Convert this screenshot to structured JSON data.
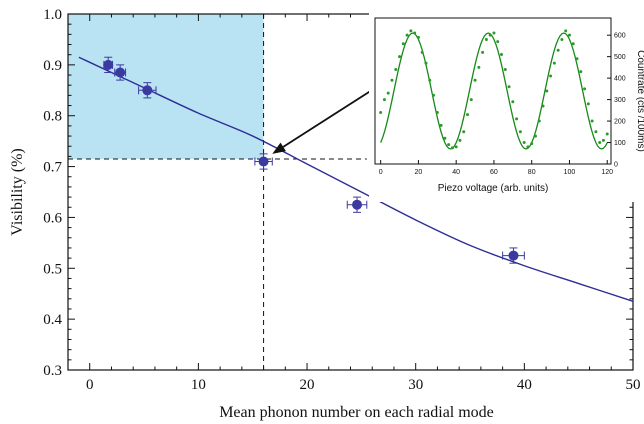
{
  "chart_data": [
    {
      "type": "scatter",
      "xlabel": "Mean phonon number on each radial mode",
      "ylabel": "Visibility (%)",
      "xlim": [
        -2,
        50
      ],
      "ylim": [
        0.3,
        1.0
      ],
      "xticks": [
        "0",
        "10",
        "20",
        "30",
        "40",
        "50"
      ],
      "yticks": [
        "0.3",
        "0.4",
        "0.5",
        "0.6",
        "0.7",
        "0.8",
        "0.9",
        "1.0"
      ],
      "grid": false,
      "series": [
        {
          "points": [
            {
              "x": 1.7,
              "y": 0.9,
              "xerr": 0.4,
              "yerr": 0.015
            },
            {
              "x": 2.8,
              "y": 0.885,
              "xerr": 0.5,
              "yerr": 0.015
            },
            {
              "x": 5.3,
              "y": 0.85,
              "xerr": 0.8,
              "yerr": 0.015
            },
            {
              "x": 16.0,
              "y": 0.71,
              "xerr": 0.8,
              "yerr": 0.015
            },
            {
              "x": 24.6,
              "y": 0.625,
              "xerr": 0.9,
              "yerr": 0.015
            },
            {
              "x": 39.0,
              "y": 0.525,
              "xerr": 1.0,
              "yerr": 0.015
            }
          ],
          "fit": {
            "x": [
              -1,
              0,
              2,
              5,
              10,
              15,
              20,
              25,
              30,
              35,
              40,
              45,
              50
            ],
            "y": [
              0.915,
              0.905,
              0.885,
              0.855,
              0.805,
              0.76,
              0.705,
              0.65,
              0.595,
              0.545,
              0.505,
              0.47,
              0.435
            ]
          }
        }
      ],
      "highlight": {
        "x_max": 16.0,
        "y_min": 0.715
      },
      "annotation": {
        "from": [
          30.7,
          0.915
        ],
        "to": [
          16.8,
          0.725
        ]
      },
      "colors": {
        "points": "#3b3aa0",
        "fit": "#2e2e96",
        "highlight": "#b9e3f3"
      }
    },
    {
      "type": "scatter",
      "xlabel": "Piezo voltage (arb. units)",
      "ylabel": "Countrate (cts /100ms)",
      "xlim": [
        -3,
        122
      ],
      "ylim": [
        0,
        680
      ],
      "xticks": [
        "0",
        "20",
        "40",
        "60",
        "80",
        "100",
        "120"
      ],
      "yticks": [
        "0",
        "100",
        "200",
        "300",
        "400",
        "500",
        "600"
      ],
      "series": [
        {
          "fit": {
            "offset": 340,
            "amplitude": 270,
            "period": 40,
            "peak_x": 17
          },
          "points": [
            {
              "x": 0,
              "y": 240
            },
            {
              "x": 2,
              "y": 300
            },
            {
              "x": 4,
              "y": 330
            },
            {
              "x": 6,
              "y": 390
            },
            {
              "x": 8,
              "y": 440
            },
            {
              "x": 10,
              "y": 500
            },
            {
              "x": 12,
              "y": 560
            },
            {
              "x": 14,
              "y": 600
            },
            {
              "x": 16,
              "y": 620
            },
            {
              "x": 18,
              "y": 610
            },
            {
              "x": 20,
              "y": 590
            },
            {
              "x": 22,
              "y": 520
            },
            {
              "x": 24,
              "y": 470
            },
            {
              "x": 26,
              "y": 390
            },
            {
              "x": 28,
              "y": 320
            },
            {
              "x": 30,
              "y": 240
            },
            {
              "x": 32,
              "y": 180
            },
            {
              "x": 34,
              "y": 120
            },
            {
              "x": 36,
              "y": 90
            },
            {
              "x": 38,
              "y": 75
            },
            {
              "x": 40,
              "y": 80
            },
            {
              "x": 42,
              "y": 110
            },
            {
              "x": 44,
              "y": 150
            },
            {
              "x": 46,
              "y": 230
            },
            {
              "x": 48,
              "y": 300
            },
            {
              "x": 50,
              "y": 390
            },
            {
              "x": 52,
              "y": 450
            },
            {
              "x": 54,
              "y": 520
            },
            {
              "x": 56,
              "y": 580
            },
            {
              "x": 58,
              "y": 600
            },
            {
              "x": 60,
              "y": 610
            },
            {
              "x": 62,
              "y": 570
            },
            {
              "x": 64,
              "y": 510
            },
            {
              "x": 66,
              "y": 440
            },
            {
              "x": 68,
              "y": 360
            },
            {
              "x": 70,
              "y": 290
            },
            {
              "x": 72,
              "y": 210
            },
            {
              "x": 74,
              "y": 150
            },
            {
              "x": 76,
              "y": 100
            },
            {
              "x": 78,
              "y": 80
            },
            {
              "x": 80,
              "y": 95
            },
            {
              "x": 82,
              "y": 130
            },
            {
              "x": 84,
              "y": 200
            },
            {
              "x": 86,
              "y": 270
            },
            {
              "x": 88,
              "y": 340
            },
            {
              "x": 90,
              "y": 410
            },
            {
              "x": 92,
              "y": 470
            },
            {
              "x": 94,
              "y": 530
            },
            {
              "x": 96,
              "y": 580
            },
            {
              "x": 98,
              "y": 620
            },
            {
              "x": 100,
              "y": 600
            },
            {
              "x": 102,
              "y": 560
            },
            {
              "x": 104,
              "y": 490
            },
            {
              "x": 106,
              "y": 430
            },
            {
              "x": 108,
              "y": 350
            },
            {
              "x": 110,
              "y": 280
            },
            {
              "x": 112,
              "y": 200
            },
            {
              "x": 114,
              "y": 150
            },
            {
              "x": 116,
              "y": 100
            },
            {
              "x": 118,
              "y": 110
            },
            {
              "x": 120,
              "y": 140
            }
          ]
        }
      ],
      "colors": {
        "points": "#2a9a2a",
        "fit": "#178a17"
      }
    }
  ]
}
